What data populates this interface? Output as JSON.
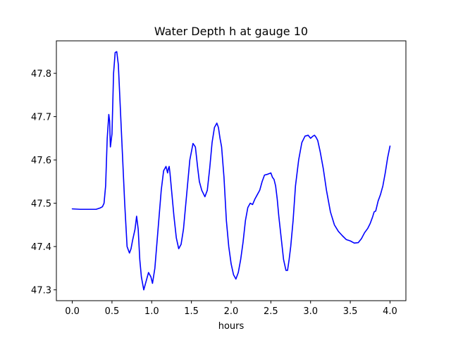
{
  "chart_data": {
    "type": "line",
    "title": "Water Depth h at gauge 10",
    "xlabel": "hours",
    "ylabel": "",
    "xlim": [
      -0.2,
      4.2
    ],
    "ylim": [
      47.275,
      47.875
    ],
    "xticks": [
      0.0,
      0.5,
      1.0,
      1.5,
      2.0,
      2.5,
      3.0,
      3.5,
      4.0
    ],
    "xtick_labels": [
      "0.0",
      "0.5",
      "1.0",
      "1.5",
      "2.0",
      "2.5",
      "3.0",
      "3.5",
      "4.0"
    ],
    "yticks": [
      47.3,
      47.4,
      47.5,
      47.6,
      47.7,
      47.8
    ],
    "ytick_labels": [
      "47.3",
      "47.4",
      "47.5",
      "47.6",
      "47.7",
      "47.8"
    ],
    "grid": false,
    "series": [
      {
        "color": "#0000ff",
        "x": [
          0.0,
          0.1,
          0.2,
          0.3,
          0.35,
          0.38,
          0.4,
          0.42,
          0.44,
          0.46,
          0.47,
          0.48,
          0.5,
          0.52,
          0.54,
          0.56,
          0.58,
          0.6,
          0.63,
          0.66,
          0.69,
          0.7,
          0.72,
          0.74,
          0.76,
          0.79,
          0.81,
          0.83,
          0.85,
          0.87,
          0.9,
          0.93,
          0.96,
          0.99,
          1.01,
          1.04,
          1.08,
          1.12,
          1.15,
          1.18,
          1.2,
          1.21,
          1.22,
          1.23,
          1.25,
          1.28,
          1.31,
          1.34,
          1.37,
          1.4,
          1.44,
          1.48,
          1.52,
          1.55,
          1.58,
          1.6,
          1.63,
          1.67,
          1.7,
          1.73,
          1.76,
          1.79,
          1.82,
          1.84,
          1.86,
          1.88,
          1.91,
          1.94,
          1.97,
          2.0,
          2.03,
          2.06,
          2.09,
          2.12,
          2.15,
          2.18,
          2.21,
          2.24,
          2.27,
          2.3,
          2.33,
          2.36,
          2.39,
          2.42,
          2.46,
          2.5,
          2.52,
          2.54,
          2.56,
          2.58,
          2.6,
          2.63,
          2.66,
          2.69,
          2.71,
          2.73,
          2.75,
          2.78,
          2.81,
          2.85,
          2.89,
          2.93,
          2.97,
          3.0,
          3.03,
          3.05,
          3.07,
          3.09,
          3.12,
          3.16,
          3.2,
          3.25,
          3.3,
          3.35,
          3.4,
          3.45,
          3.5,
          3.55,
          3.6,
          3.64,
          3.68,
          3.72,
          3.75,
          3.78,
          3.8,
          3.82,
          3.85,
          3.88,
          3.91,
          3.94,
          3.97,
          4.0
        ],
        "y": [
          47.487,
          47.486,
          47.486,
          47.486,
          47.489,
          47.492,
          47.5,
          47.54,
          47.65,
          47.705,
          47.69,
          47.63,
          47.66,
          47.8,
          47.848,
          47.85,
          47.82,
          47.74,
          47.62,
          47.5,
          47.4,
          47.395,
          47.385,
          47.395,
          47.415,
          47.44,
          47.47,
          47.44,
          47.37,
          47.33,
          47.3,
          47.32,
          47.34,
          47.33,
          47.315,
          47.35,
          47.44,
          47.53,
          47.575,
          47.585,
          47.57,
          47.58,
          47.585,
          47.57,
          47.53,
          47.47,
          47.42,
          47.395,
          47.405,
          47.44,
          47.52,
          47.6,
          47.638,
          47.63,
          47.58,
          47.55,
          47.53,
          47.515,
          47.53,
          47.58,
          47.64,
          47.675,
          47.685,
          47.675,
          47.65,
          47.63,
          47.56,
          47.46,
          47.4,
          47.36,
          47.335,
          47.325,
          47.34,
          47.37,
          47.41,
          47.46,
          47.49,
          47.5,
          47.497,
          47.51,
          47.52,
          47.53,
          47.55,
          47.565,
          47.567,
          47.57,
          47.56,
          47.555,
          47.54,
          47.51,
          47.47,
          47.42,
          47.37,
          47.345,
          47.345,
          47.37,
          47.4,
          47.46,
          47.54,
          47.6,
          47.64,
          47.655,
          47.657,
          47.65,
          47.655,
          47.657,
          47.652,
          47.645,
          47.62,
          47.58,
          47.53,
          47.48,
          47.45,
          47.435,
          47.425,
          47.416,
          47.413,
          47.408,
          47.409,
          47.418,
          47.432,
          47.442,
          47.453,
          47.468,
          47.48,
          47.482,
          47.505,
          47.52,
          47.54,
          47.57,
          47.605,
          47.632
        ]
      }
    ]
  }
}
